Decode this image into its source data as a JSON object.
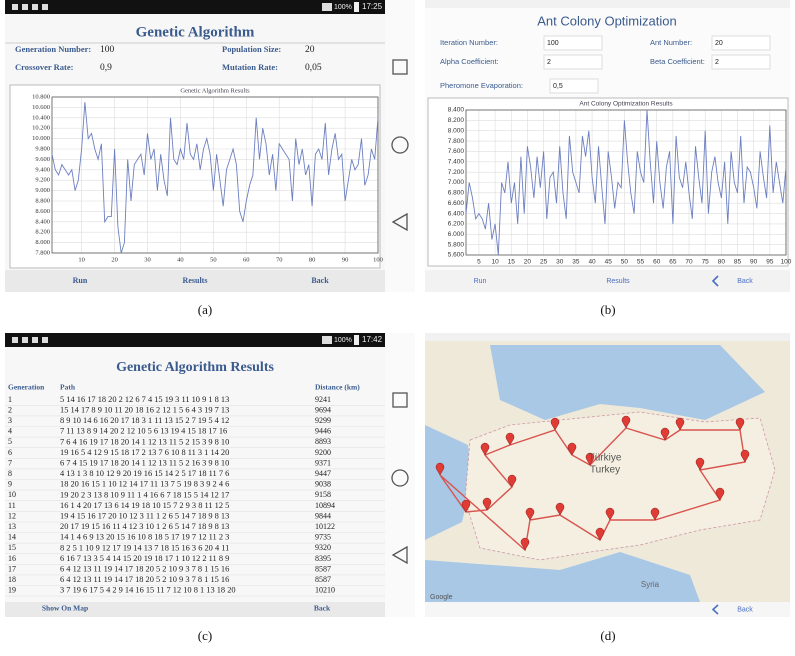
{
  "panel_a": {
    "status_time": "17:25",
    "battery": "100%",
    "title": "Genetic Algorithm",
    "params": [
      {
        "label": "Generation Number:",
        "value": 100
      },
      {
        "label": "Population Size:",
        "value": 20
      },
      {
        "label": "Crossover Rate:",
        "value": "0,9"
      },
      {
        "label": "Mutation Rate:",
        "value": "0,05"
      }
    ],
    "buttons": [
      "Run",
      "Results",
      "Back"
    ],
    "caption": "(a)"
  },
  "panel_b": {
    "title": "Ant Colony Optimization",
    "params": [
      {
        "label": "Iteration Number:",
        "value": 100
      },
      {
        "label": "Ant Number:",
        "value": 20
      },
      {
        "label": "Alpha Coefficient:",
        "value": 2
      },
      {
        "label": "Beta Coefficient:",
        "value": 2
      },
      {
        "label": "Pheromone Evaporation:",
        "value": "0,5"
      }
    ],
    "buttons": [
      "Run",
      "Results",
      "Back"
    ],
    "caption": "(b)"
  },
  "panel_c": {
    "status_time": "17:42",
    "battery": "100%",
    "title": "Genetic Algorithm Results",
    "table": {
      "header": [
        "Generation",
        "Path",
        "Distance (km)"
      ],
      "rows": [
        [
          1,
          "5 14 16 17 18 20 2 12 6 7 4 15 19 3 11 10 9 1 8 13",
          9241
        ],
        [
          2,
          "15 14 17 8 9 10 11 20 18 16 2 12 1 5 6 4 3 19 7 13",
          9694
        ],
        [
          3,
          "8 9 10 14 6 16 20 17 18 3 1 11 13 15 2 7 19 5 4 12",
          9299
        ],
        [
          4,
          "7 11 13 8 9 14 20 2 12 10 5 6 13 19 4 15 18 17 16",
          9446
        ],
        [
          5,
          "7 6 4 16 19 17 18 20 14 1 12 13 11 5 2 15 3 9 8 10",
          8893
        ],
        [
          6,
          "19 16 5 4 12 9 15 18 17 2 13 7 6 10 8 11 3 1 14 20",
          9200
        ],
        [
          7,
          "6 7 4 15 19 17 18 20 14 1 12 13 11 5 2 16 3 9 8 10",
          9371
        ],
        [
          8,
          "4 13 1 3 8 10 12 9 20 19 16 15 14 2 5 17 18 11 7 6",
          9447
        ],
        [
          9,
          "18 20 16 15 1 10 12 14 17 11 13 7 5 19 8 3 9 2 4 6",
          9038
        ],
        [
          10,
          "19 20 2 3 13 8 10 9 11 1 4 16 6 7 18 15 5 14 12 17",
          9158
        ],
        [
          11,
          "16 1 4 20 17 13 6 14 19 18 10 15 7 2 9 3 8 11 12 5",
          10894
        ],
        [
          12,
          "19 4 15 16 17 20 10 12 3 11 1 2 6 5 14 7 18 9 8 13",
          9844
        ],
        [
          13,
          "20 17 19 15 16 11 4 12 3 10 1 2 6 5 14 7 18 9 8 13",
          10122
        ],
        [
          14,
          "14 1 4 6 9 13 20 15 16 10 8 18 5 17 19 7 12 11 2 3",
          9735
        ],
        [
          15,
          "8 2 5 1 10 9 12 17 19 14 13 7 18 15 16 3 6 20 4 11",
          9320
        ],
        [
          16,
          "6 16 7 13 3 5 4 14 15 20 19 18 17 1 10 12 2 11 8 9",
          8395
        ],
        [
          17,
          "6 4 12 13 11 19 14 17 18 20 5 2 10 9 3 7 8 1 15 16",
          8587
        ],
        [
          18,
          "6 4 12 13 11 19 14 17 18 20 5 2 10 9 3 7 8 1 15 16",
          8587
        ],
        [
          19,
          "3 7 19 6 17 5 4 2 9 14 16 15 11 7 12 10 8 1 13 18 20",
          10210
        ]
      ]
    },
    "buttons": [
      "Show On Map",
      "Back"
    ],
    "caption": "(c)"
  },
  "panel_d": {
    "map_labels": [
      "Türkiye",
      "Turkey",
      "Syria"
    ],
    "attribution": "Google",
    "button": "Back",
    "caption": "(d)"
  },
  "chart_data": [
    {
      "type": "line",
      "title": "Genetic Algorithm Results",
      "color": "#6c7fc0",
      "x": [
        1,
        2,
        3,
        4,
        5,
        6,
        7,
        8,
        9,
        10,
        11,
        12,
        13,
        14,
        15,
        16,
        17,
        18,
        19,
        20,
        21,
        22,
        23,
        24,
        25,
        26,
        27,
        28,
        29,
        30,
        31,
        32,
        33,
        34,
        35,
        36,
        37,
        38,
        39,
        40,
        41,
        42,
        43,
        44,
        45,
        46,
        47,
        48,
        49,
        50,
        51,
        52,
        53,
        54,
        55,
        56,
        57,
        58,
        59,
        60,
        61,
        62,
        63,
        64,
        65,
        66,
        67,
        68,
        69,
        70,
        71,
        72,
        73,
        74,
        75,
        76,
        77,
        78,
        79,
        80,
        81,
        82,
        83,
        84,
        85,
        86,
        87,
        88,
        89,
        90,
        91,
        92,
        93,
        94,
        95,
        96,
        97,
        98,
        99,
        100
      ],
      "values": [
        9700,
        9400,
        9300,
        9500,
        9400,
        9300,
        9400,
        9000,
        9200,
        9800,
        10700,
        10000,
        10100,
        9800,
        9600,
        9900,
        8400,
        8500,
        8500,
        9800,
        8300,
        7800,
        8000,
        9600,
        8800,
        9500,
        9600,
        9700,
        9300,
        10100,
        9600,
        9800,
        9000,
        9700,
        9200,
        8900,
        10400,
        9600,
        9500,
        9800,
        9600,
        10300,
        9700,
        9600,
        9900,
        9400,
        9800,
        10000,
        9700,
        9000,
        9700,
        9200,
        8700,
        9400,
        9600,
        9800,
        9500,
        8600,
        8400,
        8800,
        9100,
        9300,
        10400,
        9600,
        10200,
        9900,
        9300,
        9700,
        9000,
        9900,
        9800,
        9700,
        9600,
        8800,
        10000,
        9500,
        9800,
        9300,
        9500,
        8700,
        9700,
        9800,
        9600,
        10300,
        9300,
        9800,
        10100,
        9600,
        9700,
        8800,
        9200,
        9600,
        9400,
        9500,
        10000,
        9100,
        9300,
        9800,
        9600,
        10400
      ],
      "xlim": [
        1,
        100
      ],
      "ylim": [
        7800,
        10800
      ],
      "xticks": [
        10,
        20,
        30,
        40,
        50,
        60,
        70,
        80,
        90,
        100
      ],
      "yticks": [
        {
          "value": 7800,
          "label": "7.800"
        },
        {
          "value": 8000,
          "label": "8.000"
        },
        {
          "value": 8200,
          "label": "8.200"
        },
        {
          "value": 8400,
          "label": "8.400"
        },
        {
          "value": 8600,
          "label": "8.600"
        },
        {
          "value": 8800,
          "label": "8.800"
        },
        {
          "value": 9000,
          "label": "9.000"
        },
        {
          "value": 9200,
          "label": "9.200"
        },
        {
          "value": 9400,
          "label": "9.400"
        },
        {
          "value": 9600,
          "label": "9.600"
        },
        {
          "value": 9800,
          "label": "9.800"
        },
        {
          "value": 10000,
          "label": "10.000"
        },
        {
          "value": 10200,
          "label": "10.200"
        },
        {
          "value": 10400,
          "label": "10.400"
        },
        {
          "value": 10600,
          "label": "10.600"
        },
        {
          "value": 10800,
          "label": "10.800"
        }
      ],
      "grid": true
    },
    {
      "type": "line",
      "title": "Ant Colony Optimization Results",
      "color": "#6c7fc0",
      "x": [
        1,
        2,
        3,
        4,
        5,
        6,
        7,
        8,
        9,
        10,
        11,
        12,
        13,
        14,
        15,
        16,
        17,
        18,
        19,
        20,
        21,
        22,
        23,
        24,
        25,
        26,
        27,
        28,
        29,
        30,
        31,
        32,
        33,
        34,
        35,
        36,
        37,
        38,
        39,
        40,
        41,
        42,
        43,
        44,
        45,
        46,
        47,
        48,
        49,
        50,
        51,
        52,
        53,
        54,
        55,
        56,
        57,
        58,
        59,
        60,
        61,
        62,
        63,
        64,
        65,
        66,
        67,
        68,
        69,
        70,
        71,
        72,
        73,
        74,
        75,
        76,
        77,
        78,
        79,
        80,
        81,
        82,
        83,
        84,
        85,
        86,
        87,
        88,
        89,
        90,
        91,
        92,
        93,
        94,
        95,
        96,
        97,
        98,
        99,
        100
      ],
      "values": [
        6400,
        7000,
        6700,
        6300,
        6400,
        6300,
        6100,
        6600,
        5900,
        6200,
        5600,
        7000,
        6800,
        7400,
        6600,
        7000,
        6200,
        7500,
        6400,
        7700,
        7300,
        6700,
        7500,
        6900,
        7600,
        6300,
        7100,
        7200,
        6600,
        7700,
        6800,
        6300,
        7900,
        7200,
        7000,
        6800,
        7900,
        7500,
        8000,
        7100,
        6600,
        7700,
        6900,
        6200,
        7600,
        7100,
        6500,
        7000,
        6900,
        8200,
        7400,
        6800,
        6400,
        7600,
        7200,
        7000,
        8400,
        7400,
        6600,
        7800,
        7000,
        6500,
        7300,
        7600,
        6200,
        7900,
        7100,
        6900,
        7400,
        6800,
        6300,
        7700,
        7100,
        6600,
        8000,
        6400,
        7200,
        7500,
        7000,
        6700,
        7400,
        6200,
        7600,
        7000,
        6800,
        7900,
        6600,
        7300,
        7200,
        6900,
        6500,
        7600,
        7100,
        6700,
        8100,
        6800,
        7400,
        7000,
        6600,
        7300
      ],
      "xlim": [
        1,
        100
      ],
      "ylim": [
        5600,
        8400
      ],
      "xticks": [
        5,
        10,
        15,
        20,
        25,
        30,
        35,
        40,
        45,
        50,
        55,
        60,
        65,
        70,
        75,
        80,
        85,
        90,
        95,
        100
      ],
      "yticks": [
        {
          "value": 5600,
          "label": "5.600"
        },
        {
          "value": 5800,
          "label": "5.800"
        },
        {
          "value": 6000,
          "label": "6.000"
        },
        {
          "value": 6200,
          "label": "6.200"
        },
        {
          "value": 6400,
          "label": "6.400"
        },
        {
          "value": 6600,
          "label": "6.600"
        },
        {
          "value": 6800,
          "label": "6.800"
        },
        {
          "value": 7000,
          "label": "7.000"
        },
        {
          "value": 7200,
          "label": "7.200"
        },
        {
          "value": 7400,
          "label": "7.400"
        },
        {
          "value": 7600,
          "label": "7.600"
        },
        {
          "value": 7800,
          "label": "7.800"
        },
        {
          "value": 8000,
          "label": "8.000"
        },
        {
          "value": 8200,
          "label": "8.200"
        },
        {
          "value": 8400,
          "label": "8.400"
        }
      ],
      "grid": true
    }
  ]
}
